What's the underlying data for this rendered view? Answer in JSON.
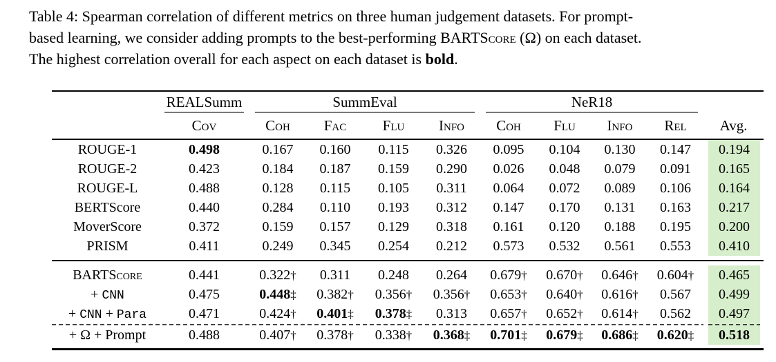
{
  "caption": {
    "line1": "Table 4: Spearman correlation of different metrics on three human judgement datasets. For prompt-",
    "line2_pre": "based learning, we consider adding prompts to the best-performing ",
    "line2_sc": "BARTScore",
    "line2_post": " (Ω) on each dataset.",
    "line3_pre": "The highest correlation overall for each aspect on each dataset is ",
    "line3_bold": "bold",
    "line3_post": "."
  },
  "colors": {
    "avg_highlight": "#d6eecb"
  },
  "table": {
    "groups": [
      {
        "label": "REALSumm",
        "span": 1
      },
      {
        "label": "SummEval",
        "span": 4
      },
      {
        "label": "NeR18",
        "span": 4
      }
    ],
    "columns": [
      "Cov",
      "Coh",
      "Fac",
      "Flu",
      "Info",
      "Coh",
      "Flu",
      "Info",
      "Rel"
    ],
    "avg_column": "Avg.",
    "sections": [
      {
        "divider": "none",
        "rows": [
          {
            "label": [
              {
                "t": "ROUGE-1"
              }
            ],
            "cells": [
              {
                "v": "0.498",
                "b": true
              },
              {
                "v": "0.167"
              },
              {
                "v": "0.160"
              },
              {
                "v": "0.115"
              },
              {
                "v": "0.326"
              },
              {
                "v": "0.095"
              },
              {
                "v": "0.104"
              },
              {
                "v": "0.130"
              },
              {
                "v": "0.147"
              },
              {
                "v": "0.194"
              }
            ]
          },
          {
            "label": [
              {
                "t": "ROUGE-2"
              }
            ],
            "cells": [
              {
                "v": "0.423"
              },
              {
                "v": "0.184"
              },
              {
                "v": "0.187"
              },
              {
                "v": "0.159"
              },
              {
                "v": "0.290"
              },
              {
                "v": "0.026"
              },
              {
                "v": "0.048"
              },
              {
                "v": "0.079"
              },
              {
                "v": "0.091"
              },
              {
                "v": "0.165"
              }
            ]
          },
          {
            "label": [
              {
                "t": "ROUGE-L"
              }
            ],
            "cells": [
              {
                "v": "0.488"
              },
              {
                "v": "0.128"
              },
              {
                "v": "0.115"
              },
              {
                "v": "0.105"
              },
              {
                "v": "0.311"
              },
              {
                "v": "0.064"
              },
              {
                "v": "0.072"
              },
              {
                "v": "0.089"
              },
              {
                "v": "0.106"
              },
              {
                "v": "0.164"
              }
            ]
          },
          {
            "label": [
              {
                "t": "BERTScore"
              }
            ],
            "cells": [
              {
                "v": "0.440"
              },
              {
                "v": "0.284"
              },
              {
                "v": "0.110"
              },
              {
                "v": "0.193"
              },
              {
                "v": "0.312"
              },
              {
                "v": "0.147"
              },
              {
                "v": "0.170"
              },
              {
                "v": "0.131"
              },
              {
                "v": "0.163"
              },
              {
                "v": "0.217"
              }
            ]
          },
          {
            "label": [
              {
                "t": "MoverScore"
              }
            ],
            "cells": [
              {
                "v": "0.372"
              },
              {
                "v": "0.159"
              },
              {
                "v": "0.157"
              },
              {
                "v": "0.129"
              },
              {
                "v": "0.318"
              },
              {
                "v": "0.161"
              },
              {
                "v": "0.120"
              },
              {
                "v": "0.188"
              },
              {
                "v": "0.195"
              },
              {
                "v": "0.200"
              }
            ]
          },
          {
            "label": [
              {
                "t": "PRISM"
              }
            ],
            "cells": [
              {
                "v": "0.411"
              },
              {
                "v": "0.249"
              },
              {
                "v": "0.345"
              },
              {
                "v": "0.254"
              },
              {
                "v": "0.212"
              },
              {
                "v": "0.573"
              },
              {
                "v": "0.532"
              },
              {
                "v": "0.561"
              },
              {
                "v": "0.553"
              },
              {
                "v": "0.410"
              }
            ]
          }
        ]
      },
      {
        "divider": "solid",
        "rows": [
          {
            "label": [
              {
                "t": "BARTScore",
                "f": "sc"
              }
            ],
            "cells": [
              {
                "v": "0.441"
              },
              {
                "v": "0.322",
                "m": "†"
              },
              {
                "v": "0.311"
              },
              {
                "v": "0.248"
              },
              {
                "v": "0.264"
              },
              {
                "v": "0.679",
                "m": "†"
              },
              {
                "v": "0.670",
                "m": "†"
              },
              {
                "v": "0.646",
                "m": "†"
              },
              {
                "v": "0.604",
                "m": "†"
              },
              {
                "v": "0.465"
              }
            ]
          },
          {
            "label": [
              {
                "t": "+ "
              },
              {
                "t": "CNN",
                "f": "mono"
              }
            ],
            "cells": [
              {
                "v": "0.475"
              },
              {
                "v": "0.448",
                "b": true,
                "m": "‡"
              },
              {
                "v": "0.382",
                "m": "†"
              },
              {
                "v": "0.356",
                "m": "†"
              },
              {
                "v": "0.356",
                "m": "†"
              },
              {
                "v": "0.653",
                "m": "†"
              },
              {
                "v": "0.640",
                "m": "†"
              },
              {
                "v": "0.616",
                "m": "†"
              },
              {
                "v": "0.567"
              },
              {
                "v": "0.499"
              }
            ]
          },
          {
            "label": [
              {
                "t": "+ "
              },
              {
                "t": "CNN",
                "f": "mono"
              },
              {
                "t": " + "
              },
              {
                "t": "Para",
                "f": "mono"
              }
            ],
            "cells": [
              {
                "v": "0.471"
              },
              {
                "v": "0.424",
                "m": "†"
              },
              {
                "v": "0.401",
                "b": true,
                "m": "‡"
              },
              {
                "v": "0.378",
                "b": true,
                "m": "‡"
              },
              {
                "v": "0.313"
              },
              {
                "v": "0.657",
                "m": "†"
              },
              {
                "v": "0.652",
                "m": "†"
              },
              {
                "v": "0.614",
                "m": "†"
              },
              {
                "v": "0.562"
              },
              {
                "v": "0.497"
              }
            ]
          }
        ]
      },
      {
        "divider": "dashed",
        "rows": [
          {
            "label": [
              {
                "t": "+ Ω + Prompt"
              }
            ],
            "cells": [
              {
                "v": "0.488"
              },
              {
                "v": "0.407",
                "m": "†"
              },
              {
                "v": "0.378",
                "m": "†"
              },
              {
                "v": "0.338",
                "m": "†"
              },
              {
                "v": "0.368",
                "b": true,
                "m": "‡"
              },
              {
                "v": "0.701",
                "b": true,
                "m": "‡"
              },
              {
                "v": "0.679",
                "b": true,
                "m": "‡"
              },
              {
                "v": "0.686",
                "b": true,
                "m": "‡"
              },
              {
                "v": "0.620",
                "b": true,
                "m": "‡"
              },
              {
                "v": "0.518",
                "b": true
              }
            ]
          }
        ]
      }
    ]
  }
}
